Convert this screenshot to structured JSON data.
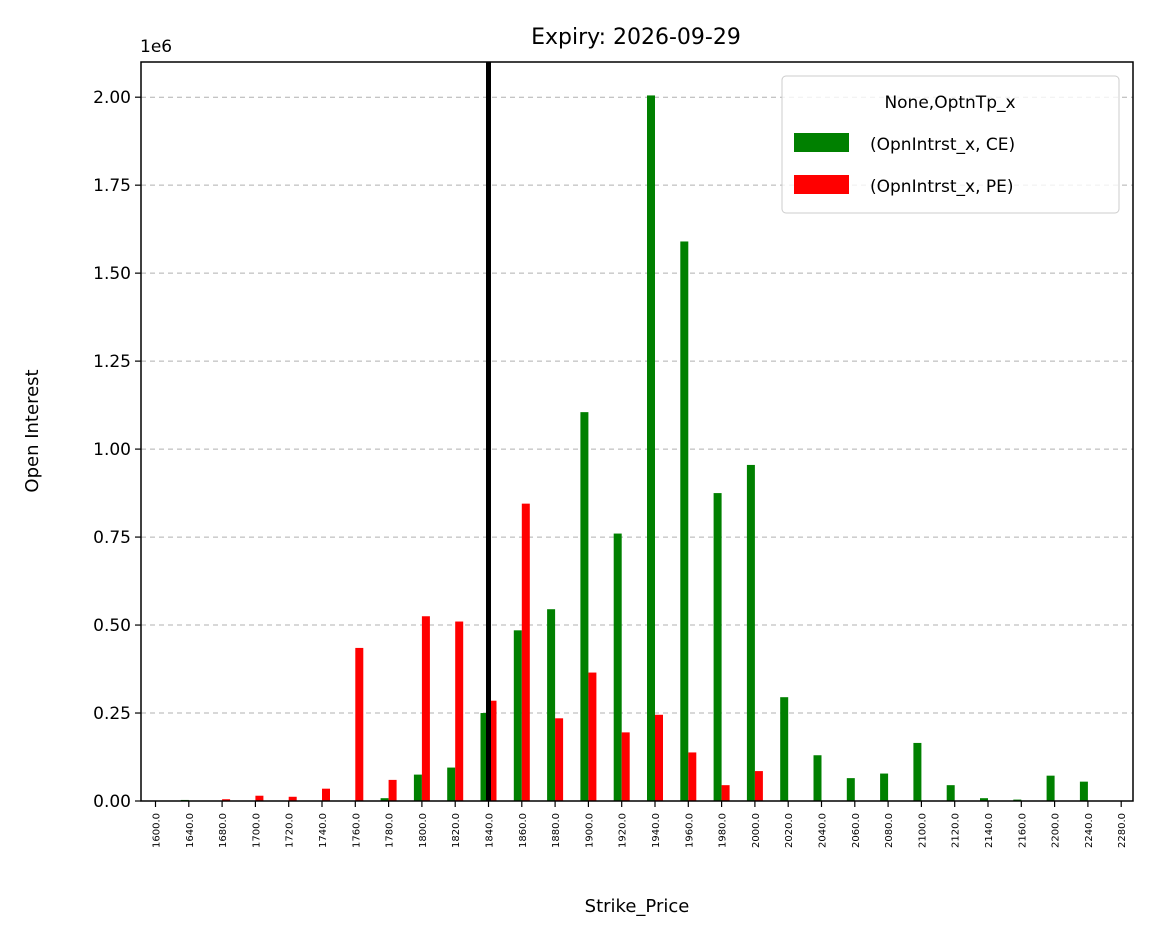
{
  "chart_data": {
    "type": "bar",
    "title": "Expiry: 2026-09-29",
    "xlabel": "Strike_Price",
    "ylabel": "Open Interest",
    "y_offset_label": "1e6",
    "ylim": [
      0,
      2100000
    ],
    "yticks": [
      0,
      250000,
      500000,
      750000,
      1000000,
      1250000,
      1500000,
      1750000,
      2000000
    ],
    "ytick_labels": [
      "0.00",
      "0.25",
      "0.50",
      "0.75",
      "1.00",
      "1.25",
      "1.50",
      "1.75",
      "2.00"
    ],
    "grid": "y-dashed",
    "legend_position": "top-right",
    "legend_title": "None,OptnTp_x",
    "vline_category": "1840.0",
    "categories": [
      "1600.0",
      "1640.0",
      "1680.0",
      "1700.0",
      "1720.0",
      "1740.0",
      "1760.0",
      "1780.0",
      "1800.0",
      "1820.0",
      "1840.0",
      "1860.0",
      "1880.0",
      "1900.0",
      "1920.0",
      "1940.0",
      "1960.0",
      "1980.0",
      "2000.0",
      "2020.0",
      "2040.0",
      "2060.0",
      "2080.0",
      "2100.0",
      "2120.0",
      "2140.0",
      "2160.0",
      "2200.0",
      "2240.0",
      "2280.0"
    ],
    "series": [
      {
        "name": "(OpnIntrst_x, CE)",
        "color": "#008000",
        "values": [
          0,
          3000,
          0,
          0,
          0,
          0,
          0,
          8000,
          75000,
          95000,
          250000,
          485000,
          545000,
          1105000,
          760000,
          2005000,
          1590000,
          875000,
          955000,
          295000,
          130000,
          65000,
          78000,
          165000,
          45000,
          8000,
          4000,
          72000,
          55000,
          0
        ]
      },
      {
        "name": "(OpnIntrst_x, PE)",
        "color": "#ff0000",
        "values": [
          0,
          0,
          5000,
          15000,
          12000,
          35000,
          435000,
          60000,
          525000,
          510000,
          285000,
          845000,
          235000,
          365000,
          195000,
          245000,
          138000,
          45000,
          85000,
          0,
          0,
          0,
          0,
          0,
          0,
          0,
          0,
          0,
          0,
          0
        ]
      }
    ]
  }
}
